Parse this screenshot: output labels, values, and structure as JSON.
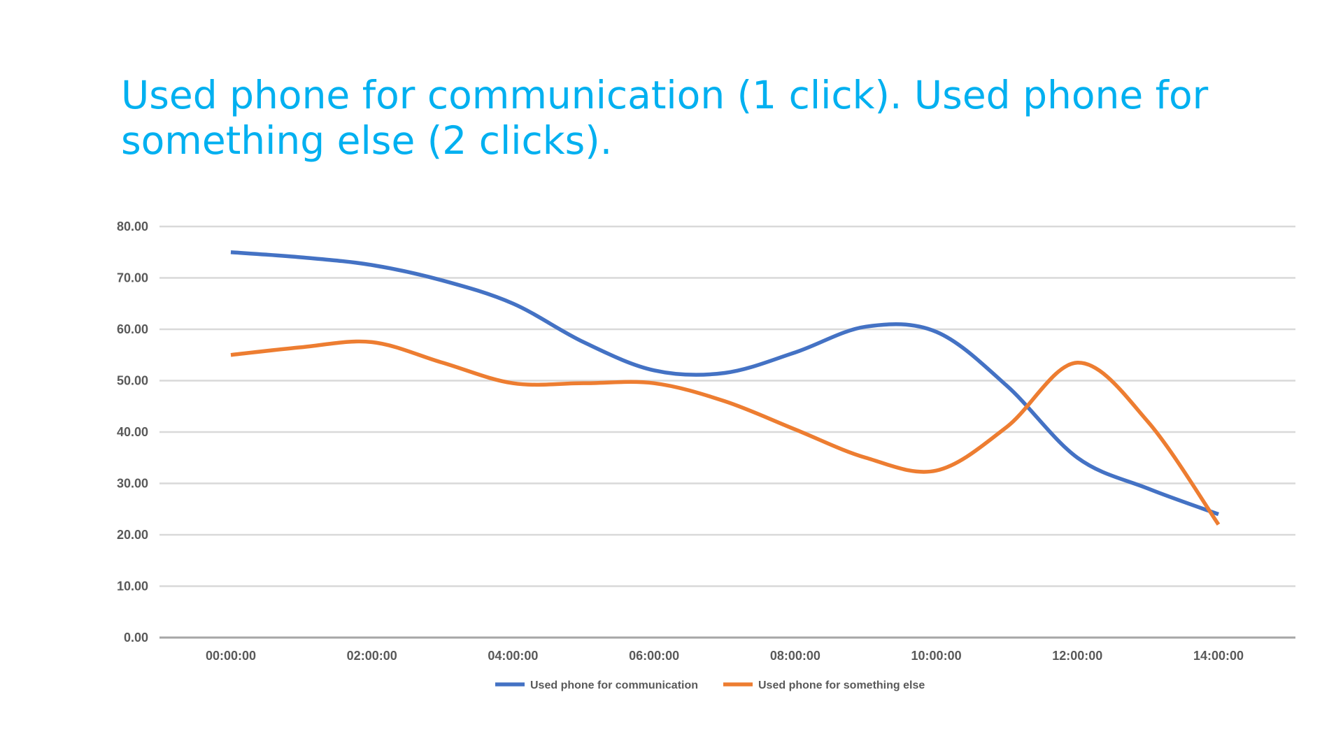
{
  "chart_data": {
    "type": "line",
    "title": "Used phone for communication (1 click). Used phone for something else (2 clicks).",
    "xlabel": "",
    "ylabel": "",
    "x": [
      "00:00:00",
      "01:00:00",
      "02:00:00",
      "03:00:00",
      "04:00:00",
      "05:00:00",
      "06:00:00",
      "07:00:00",
      "08:00:00",
      "09:00:00",
      "10:00:00",
      "11:00:00",
      "12:00:00",
      "13:00:00",
      "14:00:00"
    ],
    "x_tick_labels": [
      "00:00:00",
      "02:00:00",
      "04:00:00",
      "06:00:00",
      "08:00:00",
      "10:00:00",
      "12:00:00",
      "14:00:00"
    ],
    "y_tick_labels": [
      "0.00",
      "10.00",
      "20.00",
      "30.00",
      "40.00",
      "50.00",
      "60.00",
      "70.00",
      "80.00"
    ],
    "ylim": [
      0,
      80
    ],
    "grid": "horizontal",
    "smooth": true,
    "legend_position": "bottom",
    "series": [
      {
        "name": "Used phone for communication",
        "color": "#4472C4",
        "values": [
          75,
          74,
          72.5,
          69.5,
          65,
          57.5,
          52,
          51.5,
          55.5,
          60.5,
          59.5,
          49,
          35,
          29,
          24
        ]
      },
      {
        "name": "Used phone for something else",
        "color": "#ED7D31",
        "values": [
          55,
          56.5,
          57.5,
          53.5,
          49.5,
          49.5,
          49.5,
          46,
          40.5,
          35,
          32.5,
          41,
          53.5,
          42,
          22
        ]
      }
    ]
  }
}
